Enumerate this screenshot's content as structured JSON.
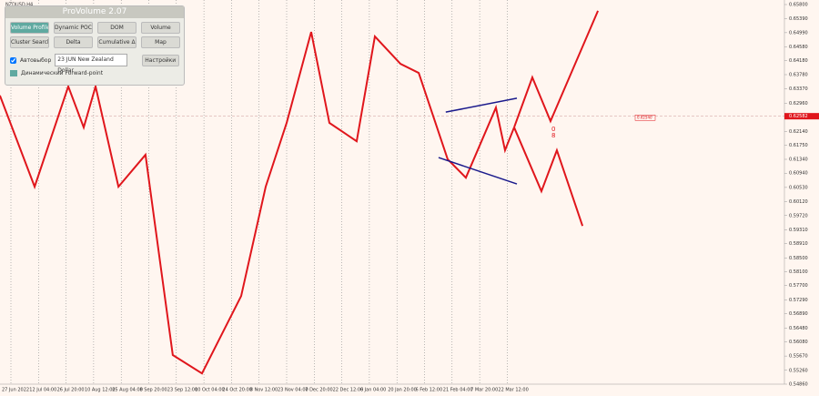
{
  "symbol": "NZDUSD,H4",
  "panel": {
    "title": "ProVolume 2.07",
    "buttons": [
      "Volume Profile",
      "Dynamic POC",
      "DOM",
      "Volume",
      "Cluster Search",
      "Delta",
      "Cumulative Δ",
      "Map"
    ],
    "auto_select": "Автовыбор",
    "instrument": "23 JUN New Zealand Dollar",
    "settings": "Настройки",
    "forward_point": "Динамический Forward-point"
  },
  "chart": {
    "yticks": [
      {
        "value": 0.658,
        "label": "0.65800"
      },
      {
        "value": 0.6539,
        "label": "0.65390"
      },
      {
        "value": 0.6499,
        "label": "0.64990"
      },
      {
        "value": 0.6458,
        "label": "0.64580"
      },
      {
        "value": 0.6418,
        "label": "0.64180"
      },
      {
        "value": 0.6378,
        "label": "0.63780"
      },
      {
        "value": 0.6337,
        "label": "0.63370"
      },
      {
        "value": 0.6296,
        "label": "0.62960"
      },
      {
        "value": 0.6256,
        "label": "0.62560"
      },
      {
        "value": 0.6214,
        "label": "0.62140"
      },
      {
        "value": 0.6175,
        "label": "0.61750"
      },
      {
        "value": 0.6134,
        "label": "0.61340"
      },
      {
        "value": 0.6094,
        "label": "0.60940"
      },
      {
        "value": 0.6053,
        "label": "0.60530"
      },
      {
        "value": 0.6012,
        "label": "0.60120"
      },
      {
        "value": 0.5972,
        "label": "0.59720"
      },
      {
        "value": 0.5931,
        "label": "0.59310"
      },
      {
        "value": 0.5891,
        "label": "0.58910"
      },
      {
        "value": 0.585,
        "label": "0.58500"
      },
      {
        "value": 0.581,
        "label": "0.58100"
      },
      {
        "value": 0.577,
        "label": "0.57700"
      },
      {
        "value": 0.5729,
        "label": "0.57290"
      },
      {
        "value": 0.5689,
        "label": "0.56890"
      },
      {
        "value": 0.5648,
        "label": "0.56480"
      },
      {
        "value": 0.5608,
        "label": "0.56080"
      },
      {
        "value": 0.5567,
        "label": "0.55670"
      },
      {
        "value": 0.5526,
        "label": "0.55260"
      },
      {
        "value": 0.5486,
        "label": "0.54860"
      }
    ],
    "dates": [
      "27 Jun 2022",
      "12 Jul 04:00",
      "26 Jul 20:00",
      "10 Aug 12:00",
      "25 Aug 04:00",
      "8 Sep 20:00",
      "23 Sep 12:00",
      "10 Oct 04:00",
      "24 Oct 20:00",
      "8 Nov 12:00",
      "23 Nov 04:00",
      "7 Dec 20:00",
      "22 Dec 12:00",
      "6 Jan 04:00",
      "20 Jan 20:00",
      "6 Feb 12:00",
      "21 Feb 04:00",
      "7 Mar 20:00",
      "22 Mar 12:00"
    ],
    "current_price": {
      "value": 0.62582,
      "label": "0.62582"
    },
    "bid_price": {
      "value": 0.6254,
      "label": "0.62540"
    },
    "wave_labels": [
      "0",
      "8"
    ],
    "zigzag": {
      "color": "#e0161c",
      "x": [
        -0.4,
        0.86,
        2.08,
        2.64,
        3.07,
        3.9,
        4.88,
        5.87,
        6.93,
        8.35,
        9.24,
        10.0,
        10.89,
        11.55,
        12.54,
        13.2,
        14.13,
        14.79,
        15.84,
        16.5,
        17.59,
        17.92,
        18.25
      ],
      "y": [
        0.6318,
        0.6055,
        0.6344,
        0.6226,
        0.6344,
        0.6055,
        0.6147,
        0.557,
        0.5517,
        0.574,
        0.6055,
        0.6239,
        0.6501,
        0.6239,
        0.6186,
        0.6488,
        0.6409,
        0.6383,
        0.6134,
        0.6081,
        0.6283,
        0.616,
        0.6226
      ]
    },
    "projection_up": {
      "color": "#e0161c",
      "x": [
        18.25,
        18.91,
        19.57,
        21.29
      ],
      "y": [
        0.6226,
        0.637,
        0.6244,
        0.6562
      ]
    },
    "projection_down": {
      "color": "#e0161c",
      "x": [
        18.25,
        19.24,
        19.8,
        20.73
      ],
      "y": [
        0.6226,
        0.6042,
        0.616,
        0.5942
      ]
    },
    "channel_upper": {
      "color": "#1a1a8c",
      "x": [
        15.77,
        18.35
      ],
      "y": [
        0.627,
        0.631
      ]
    },
    "channel_lower": {
      "color": "#1a1a8c",
      "x": [
        15.51,
        18.35
      ],
      "y": [
        0.6139,
        0.6063
      ]
    }
  }
}
